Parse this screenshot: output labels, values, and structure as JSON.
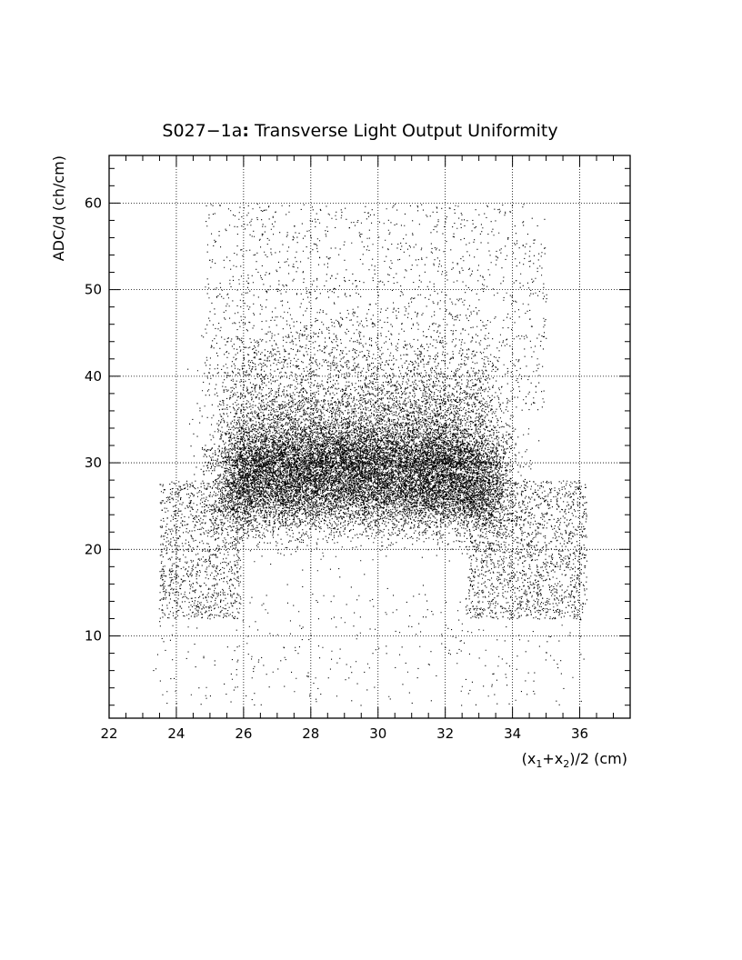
{
  "chart_data": {
    "type": "scatter",
    "title": "S027−1a: Transverse Light Output Uniformity",
    "xlabel": "(x1+x2)/2 (cm)",
    "ylabel": "ADC/d (ch/cm)",
    "xlim": [
      22,
      37.5
    ],
    "ylim": [
      0.5,
      65.5
    ],
    "x_ticks": [
      22,
      24,
      26,
      28,
      30,
      32,
      34,
      36
    ],
    "y_ticks": [
      10,
      20,
      30,
      40,
      50,
      60
    ],
    "grid": true,
    "legend": "none",
    "series": [
      {
        "x_range": [
          23.3,
          36.2
        ],
        "y_range": [
          2,
          60
        ],
        "core_x_range": [
          25.5,
          33.5
        ],
        "core_y_center": 27.5,
        "core_y_spread": 3,
        "edge_y_range": [
          12,
          28
        ],
        "approx_points": 25000
      }
    ]
  }
}
